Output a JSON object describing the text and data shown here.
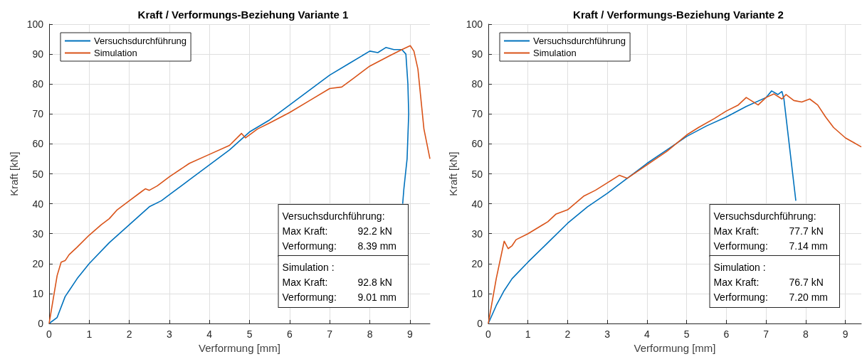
{
  "chart_data": [
    {
      "type": "line",
      "title": "Kraft / Verformungs-Beziehung Variante 1",
      "xlabel": "Verformung [mm]",
      "ylabel": "Kraft [kN]",
      "xlim": [
        0,
        9.5
      ],
      "xticks": [
        0,
        1,
        2,
        3,
        4,
        5,
        6,
        7,
        8,
        9
      ],
      "ylim": [
        0,
        100
      ],
      "yticks": [
        0,
        10,
        20,
        30,
        40,
        50,
        60,
        70,
        80,
        90,
        100
      ],
      "grid": true,
      "legend": "top left",
      "line_style": "solid",
      "marker": "none",
      "series": [
        {
          "name": "Versuchsdurchführung",
          "color": "#0072bd",
          "x": [
            0,
            0.2,
            0.4,
            0.5,
            0.7,
            1,
            1.5,
            2,
            2.5,
            2.8,
            3,
            3.5,
            4,
            4.5,
            5,
            5.5,
            6,
            6.5,
            7,
            7.5,
            8,
            8.2,
            8.4,
            8.6,
            8.8,
            8.9,
            8.95,
            8.97,
            8.93,
            8.85,
            8.82
          ],
          "values": [
            0,
            2,
            9,
            11,
            15,
            20,
            27,
            33,
            39,
            41,
            43,
            48,
            53,
            58,
            64,
            68,
            73,
            78,
            83,
            87,
            91,
            90.5,
            92.2,
            91.5,
            91.5,
            90,
            80,
            70,
            55,
            45,
            40
          ]
        },
        {
          "name": "Simulation",
          "color": "#d95319",
          "x": [
            0,
            0.1,
            0.2,
            0.3,
            0.4,
            0.5,
            0.7,
            1,
            1.3,
            1.5,
            1.7,
            2,
            2.3,
            2.4,
            2.5,
            2.7,
            3,
            3.5,
            4,
            4.5,
            4.8,
            4.9,
            5.2,
            5.5,
            6,
            6.5,
            7,
            7.3,
            7.6,
            8,
            8.5,
            8.8,
            9.01,
            9.1,
            9.2,
            9.35,
            9.5
          ],
          "values": [
            0,
            8,
            16,
            20.5,
            21,
            23,
            25.5,
            29.5,
            33,
            35,
            38,
            41,
            44,
            45,
            44.5,
            46,
            49,
            53.5,
            56.5,
            59.5,
            63.5,
            62,
            65,
            67,
            70.5,
            74.5,
            78.5,
            79,
            82,
            86,
            89.5,
            91.5,
            92.8,
            91,
            85,
            65,
            55
          ]
        }
      ],
      "annotations": [
        "Versuchsdurchführung:\nMax Kraft:\t92.2 kN\nVerformung:\t8.39 mm",
        "Simulation :\nMax Kraft:\t92.8 kN\nVerformung:\t9.01 mm"
      ]
    },
    {
      "type": "line",
      "title": "Kraft / Verformungs-Beziehung Variante 2",
      "xlabel": "Verformung [mm]",
      "ylabel": "Kraft [kN]",
      "xlim": [
        0,
        9.4
      ],
      "xticks": [
        0,
        1,
        2,
        3,
        4,
        5,
        6,
        7,
        8,
        9
      ],
      "ylim": [
        0,
        100
      ],
      "yticks": [
        0,
        10,
        20,
        30,
        40,
        50,
        60,
        70,
        80,
        90,
        100
      ],
      "grid": true,
      "legend": "top left",
      "line_style": "solid",
      "marker": "none",
      "series": [
        {
          "name": "Versuchsdurchführung",
          "color": "#0072bd",
          "x": [
            0,
            0.2,
            0.4,
            0.6,
            1,
            1.5,
            2,
            2.5,
            3,
            3.5,
            4,
            4.5,
            5,
            5.5,
            6,
            6.5,
            7,
            7.14,
            7.3,
            7.4,
            7.45,
            7.6,
            7.75
          ],
          "values": [
            0,
            6,
            11,
            15,
            20.5,
            27,
            33.5,
            39,
            43.5,
            48.5,
            53.5,
            58,
            62.5,
            66,
            69,
            72.5,
            75.5,
            77.7,
            76.5,
            77.5,
            75,
            58,
            41
          ]
        },
        {
          "name": "Simulation",
          "color": "#d95319",
          "x": [
            0,
            0.2,
            0.4,
            0.5,
            0.6,
            0.7,
            1,
            1.5,
            1.7,
            2,
            2.4,
            2.7,
            3,
            3.3,
            3.5,
            4,
            4.5,
            5,
            5.3,
            5.7,
            6,
            6.3,
            6.5,
            6.8,
            7,
            7.2,
            7.4,
            7.5,
            7.7,
            7.9,
            8.1,
            8.3,
            8.5,
            8.7,
            9,
            9.2,
            9.4
          ],
          "values": [
            0,
            15,
            27.5,
            25,
            26,
            28,
            30,
            34,
            36.5,
            38,
            42.5,
            44.5,
            47,
            49.5,
            48.5,
            53,
            57.5,
            63,
            65.5,
            68.5,
            71,
            73,
            75.5,
            73,
            75.5,
            76.7,
            75,
            76.5,
            74.5,
            74,
            75,
            73,
            69,
            65.5,
            62,
            60.5,
            59
          ]
        }
      ],
      "annotations": [
        "Versuchsdurchführung:\nMax Kraft:\t77.7 kN\nVerformung:\t7.14 mm",
        "Simulation :\nMax Kraft:\t76.7 kN\nVerformung:\t7.20 mm"
      ]
    }
  ]
}
